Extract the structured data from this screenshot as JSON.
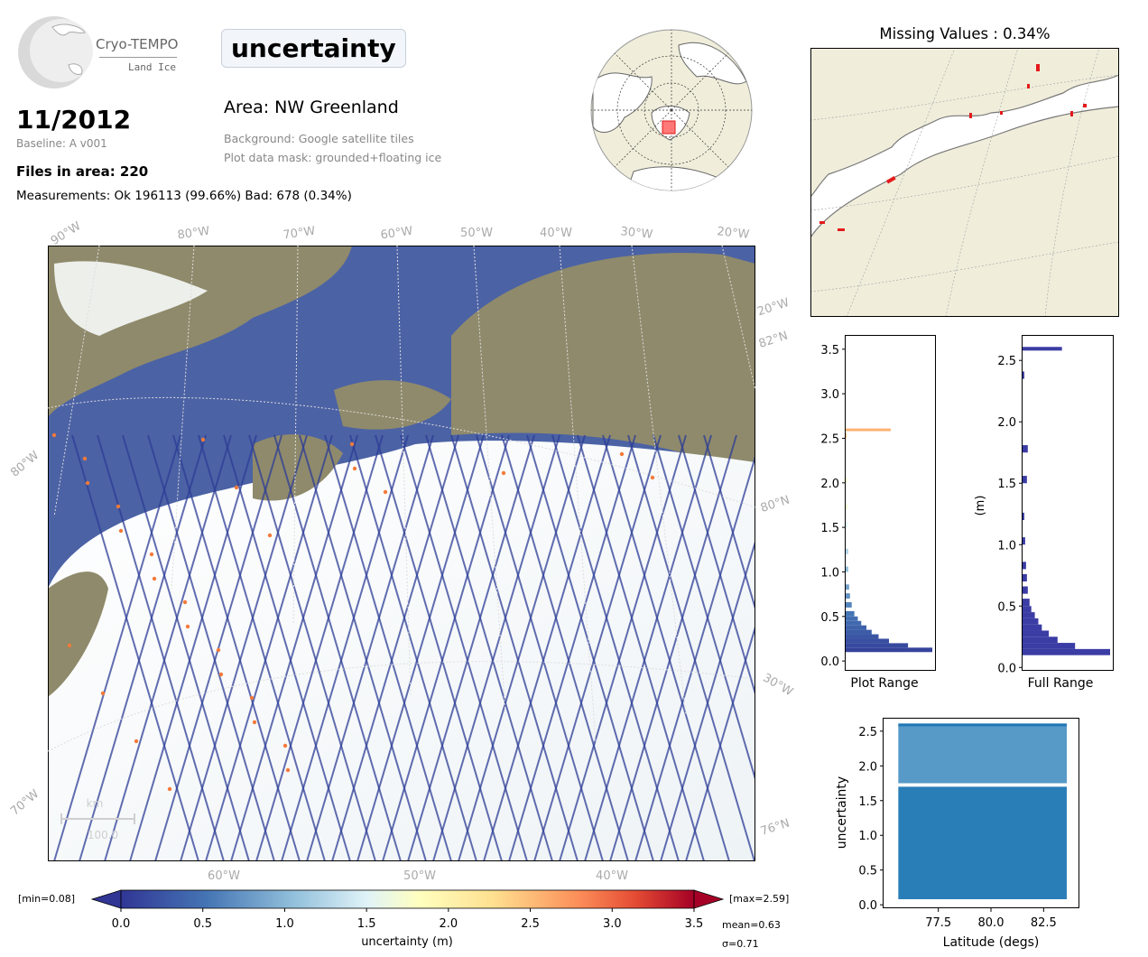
{
  "logo": {
    "title": "Cryo-TEMPO",
    "subtitle": "Land Ice"
  },
  "variable": "uncertainty",
  "date": "11/2012",
  "baseline": "Baseline: A v001",
  "files_in_area": "Files in area: 220",
  "measurements": "Measurements: Ok 196113 (99.66%) Bad: 678 (0.34%)",
  "area": "Area: NW Greenland",
  "background_note": "Background: Google satellite tiles",
  "mask_note": "Plot data mask: grounded+floating ice",
  "missing_values": "Missing Values : 0.34%",
  "main_map": {
    "lon_labels_top": [
      "90°W",
      "80°W",
      "70°W",
      "60°W",
      "50°W",
      "40°W",
      "30°W",
      "20°W"
    ],
    "lon_labels_bottom": [
      "60°W",
      "50°W",
      "40°W"
    ],
    "left_labels": [
      "80°W",
      "70°W"
    ],
    "right_labels": [
      "20°W",
      "82°N",
      "80°N",
      "30°W",
      "76°N"
    ],
    "scale_unit": "km",
    "scale_value": "100.0"
  },
  "colors": {
    "ocean": "#4b62a5",
    "land": "#8f8a6b",
    "ice": "#f4f7f8",
    "track": "#2d3d96",
    "land_inset": "#f0eedb",
    "hist_full": "#3b3ca4",
    "scatter": "#1f77b4"
  },
  "colorbar": {
    "min_label": "[min=0.08]",
    "max_label": "[max=2.59]",
    "label": "uncertainty (m)",
    "ticks": [
      "0.0",
      "0.5",
      "1.0",
      "1.5",
      "2.0",
      "2.5",
      "3.0",
      "3.5"
    ],
    "mean": "mean=0.63",
    "sigma": "σ=0.71",
    "range": [
      0,
      3.5
    ]
  },
  "chart_data": [
    {
      "type": "bar",
      "title": "",
      "xlabel": "Plot Range",
      "ylabel": "",
      "orientation": "horizontal",
      "ylim": [
        -0.1,
        3.65
      ],
      "yticks": [
        "0.0",
        "0.5",
        "1.0",
        "1.5",
        "2.0",
        "2.5",
        "3.0",
        "3.5"
      ],
      "bins": [
        0.1,
        0.15,
        0.2,
        0.25,
        0.3,
        0.35,
        0.4,
        0.45,
        0.5,
        0.6,
        0.7,
        0.8,
        1.0,
        1.2,
        1.5,
        1.7,
        2.0,
        2.5,
        2.58
      ],
      "values": [
        1.0,
        0.72,
        0.5,
        0.38,
        0.3,
        0.24,
        0.18,
        0.14,
        0.1,
        0.07,
        0.05,
        0.04,
        0.03,
        0.03,
        0.02,
        0.02,
        0.01,
        0.01,
        0.52
      ]
    },
    {
      "type": "bar",
      "title": "",
      "xlabel": "Full Range",
      "ylabel": "(m)",
      "orientation": "horizontal",
      "ylim": [
        -0.02,
        2.7
      ],
      "yticks": [
        "0.0",
        "0.5",
        "1.0",
        "1.5",
        "2.0",
        "2.5"
      ],
      "bins": [
        0.1,
        0.15,
        0.2,
        0.25,
        0.3,
        0.35,
        0.4,
        0.45,
        0.5,
        0.6,
        0.7,
        0.8,
        1.0,
        1.2,
        1.5,
        1.75,
        2.35,
        2.58
      ],
      "values": [
        1.0,
        0.6,
        0.4,
        0.3,
        0.22,
        0.18,
        0.14,
        0.1,
        0.08,
        0.06,
        0.05,
        0.04,
        0.03,
        0.02,
        0.05,
        0.06,
        0.02,
        0.45
      ]
    },
    {
      "type": "scatter",
      "title": "",
      "xlabel": "Latitude (degs)",
      "ylabel": "uncertainty",
      "xlim": [
        74.9,
        84.2
      ],
      "ylim": [
        -0.05,
        2.68
      ],
      "xticks": [
        "77.5",
        "80.0",
        "82.5"
      ],
      "yticks": [
        "0.0",
        "0.5",
        "1.0",
        "1.5",
        "2.0",
        "2.5"
      ],
      "x_range": [
        75.6,
        83.6
      ],
      "y_range": [
        0.08,
        2.59
      ]
    }
  ]
}
